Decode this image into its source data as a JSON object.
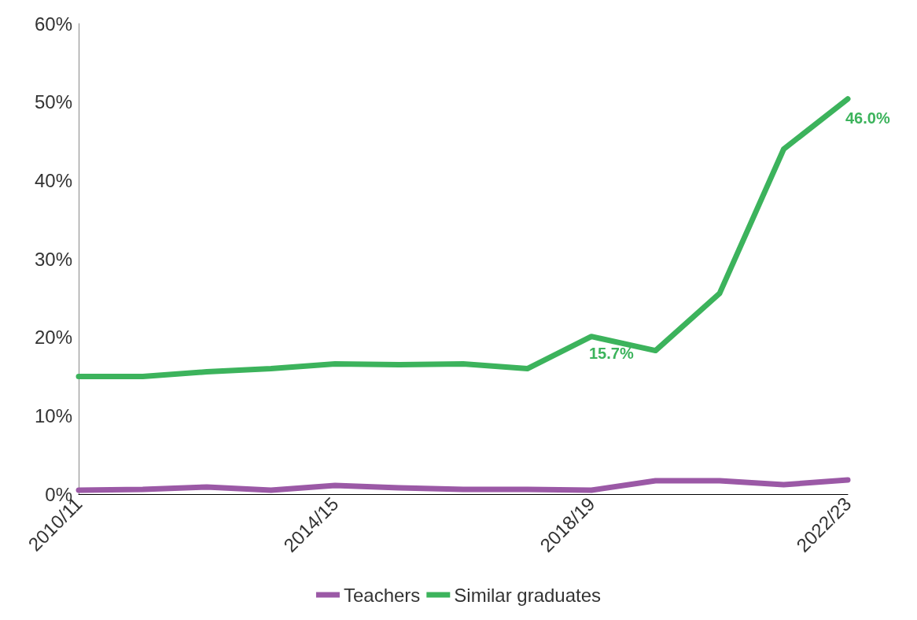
{
  "chart_data": {
    "type": "line",
    "categories": [
      "2010/11",
      null,
      null,
      null,
      "2014/15",
      null,
      null,
      null,
      "2018/19",
      null,
      null,
      null,
      "2022/23"
    ],
    "series": [
      {
        "name": "Teachers",
        "color": "#9b59a6",
        "values": [
          0.5,
          0.6,
          0.9,
          0.5,
          1.1,
          0.8,
          0.6,
          0.6,
          0.5,
          1.7,
          1.7,
          1.2,
          1.8
        ]
      },
      {
        "name": "Similar graduates",
        "color": "#3cb35c",
        "values": [
          15,
          15,
          15.6,
          16,
          16.6,
          16.5,
          16.6,
          16,
          20.1,
          18.3,
          25.6,
          44,
          50.4
        ]
      }
    ],
    "ylim": [
      0,
      60
    ],
    "yticks": [
      {
        "value": 0,
        "label": "0%"
      },
      {
        "value": 10,
        "label": "10%"
      },
      {
        "value": 20,
        "label": "20%"
      },
      {
        "value": 30,
        "label": "30%"
      },
      {
        "value": 40,
        "label": "40%"
      },
      {
        "value": 50,
        "label": "50%"
      },
      {
        "value": 60,
        "label": "60%"
      }
    ],
    "annotations": [
      {
        "text": "15.7%",
        "x": "2018/19",
        "y": 18
      },
      {
        "text": "46.0%",
        "x": "2022/23",
        "y": 48
      }
    ],
    "legend": "bottom",
    "grid": false,
    "marker": "none",
    "line_style": "solid"
  }
}
